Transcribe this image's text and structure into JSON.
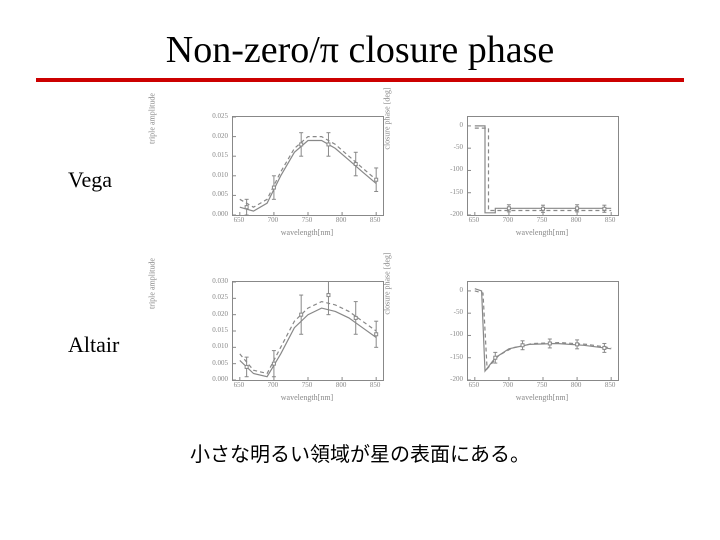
{
  "title": "Non-zero/π closure phase",
  "caption": "小さな明るい領域が星の表面にある。",
  "rule_color": "#cc0000",
  "plot_style": {
    "line_color": "#888888",
    "line_width": 1.2,
    "dash_pattern": "4 3",
    "marker_color": "#888888",
    "tick_color": "#888888",
    "box_border": "#888888",
    "background": "#ffffff",
    "label_fontsize": 8,
    "tick_fontsize": 7
  },
  "rows": [
    {
      "label": "Vega",
      "left": {
        "type": "line",
        "xlabel": "wavelength[nm]",
        "ylabel": "triple amplitude",
        "xlim": [
          640,
          860
        ],
        "ylim": [
          0,
          0.025
        ],
        "xticks": [
          650,
          700,
          750,
          800,
          850
        ],
        "xtick_labels": [
          "650",
          "700",
          "750",
          "800",
          "850"
        ],
        "yticks": [
          0,
          0.005,
          0.01,
          0.015,
          0.02,
          0.025
        ],
        "ytick_labels": [
          "0.000",
          "0.005",
          "0.010",
          "0.015",
          "0.020",
          "0.025"
        ],
        "solid": [
          [
            650,
            0.002
          ],
          [
            670,
            0.001
          ],
          [
            690,
            0.003
          ],
          [
            710,
            0.01
          ],
          [
            730,
            0.016
          ],
          [
            750,
            0.019
          ],
          [
            770,
            0.019
          ],
          [
            790,
            0.017
          ],
          [
            810,
            0.014
          ],
          [
            830,
            0.011
          ],
          [
            850,
            0.008
          ]
        ],
        "dashed": [
          [
            650,
            0.004
          ],
          [
            670,
            0.002
          ],
          [
            690,
            0.004
          ],
          [
            710,
            0.011
          ],
          [
            730,
            0.017
          ],
          [
            750,
            0.02
          ],
          [
            770,
            0.02
          ],
          [
            790,
            0.018
          ],
          [
            810,
            0.015
          ],
          [
            830,
            0.012
          ],
          [
            850,
            0.009
          ]
        ],
        "errorbars": [
          [
            660,
            0.002,
            0.002
          ],
          [
            700,
            0.007,
            0.003
          ],
          [
            740,
            0.018,
            0.003
          ],
          [
            780,
            0.018,
            0.003
          ],
          [
            820,
            0.013,
            0.003
          ],
          [
            850,
            0.009,
            0.003
          ]
        ]
      },
      "right": {
        "type": "step",
        "xlabel": "wavelength[nm]",
        "ylabel": "closure phase [deg]",
        "xlim": [
          640,
          860
        ],
        "ylim": [
          -200,
          20
        ],
        "xticks": [
          650,
          700,
          750,
          800,
          850
        ],
        "xtick_labels": [
          "650",
          "700",
          "750",
          "800",
          "850"
        ],
        "yticks": [
          -200,
          -150,
          -100,
          -50,
          0
        ],
        "ytick_labels": [
          "-200",
          "-150",
          "-100",
          "-50",
          "0"
        ],
        "solid": [
          [
            650,
            0
          ],
          [
            665,
            0
          ],
          [
            665,
            -195
          ],
          [
            680,
            -195
          ],
          [
            680,
            -185
          ],
          [
            850,
            -185
          ]
        ],
        "dashed": [
          [
            650,
            -5
          ],
          [
            670,
            -5
          ],
          [
            670,
            -190
          ],
          [
            850,
            -190
          ]
        ],
        "errorbars": [
          [
            700,
            -185,
            8
          ],
          [
            750,
            -186,
            8
          ],
          [
            800,
            -185,
            8
          ],
          [
            840,
            -186,
            8
          ]
        ]
      }
    },
    {
      "label": "Altair",
      "left": {
        "type": "line",
        "xlabel": "wavelength[nm]",
        "ylabel": "triple amplitude",
        "xlim": [
          640,
          860
        ],
        "ylim": [
          0,
          0.03
        ],
        "xticks": [
          650,
          700,
          750,
          800,
          850
        ],
        "xtick_labels": [
          "650",
          "700",
          "750",
          "800",
          "850"
        ],
        "yticks": [
          0,
          0.005,
          0.01,
          0.015,
          0.02,
          0.025,
          0.03
        ],
        "ytick_labels": [
          "0.000",
          "0.005",
          "0.010",
          "0.015",
          "0.020",
          "0.025",
          "0.030"
        ],
        "solid": [
          [
            650,
            0.006
          ],
          [
            670,
            0.002
          ],
          [
            690,
            0.001
          ],
          [
            710,
            0.008
          ],
          [
            730,
            0.016
          ],
          [
            750,
            0.02
          ],
          [
            770,
            0.022
          ],
          [
            790,
            0.021
          ],
          [
            810,
            0.019
          ],
          [
            830,
            0.016
          ],
          [
            850,
            0.013
          ]
        ],
        "dashed": [
          [
            650,
            0.008
          ],
          [
            670,
            0.003
          ],
          [
            690,
            0.002
          ],
          [
            710,
            0.01
          ],
          [
            730,
            0.018
          ],
          [
            750,
            0.022
          ],
          [
            770,
            0.024
          ],
          [
            790,
            0.023
          ],
          [
            810,
            0.021
          ],
          [
            830,
            0.018
          ],
          [
            850,
            0.015
          ]
        ],
        "errorbars": [
          [
            660,
            0.004,
            0.003
          ],
          [
            700,
            0.005,
            0.004
          ],
          [
            740,
            0.02,
            0.006
          ],
          [
            780,
            0.026,
            0.006
          ],
          [
            820,
            0.019,
            0.005
          ],
          [
            850,
            0.014,
            0.004
          ]
        ]
      },
      "right": {
        "type": "curve",
        "xlabel": "wavelength[nm]",
        "ylabel": "closure phase [deg]",
        "xlim": [
          640,
          860
        ],
        "ylim": [
          -200,
          20
        ],
        "xticks": [
          650,
          700,
          750,
          800,
          850
        ],
        "xtick_labels": [
          "650",
          "700",
          "750",
          "800",
          "850"
        ],
        "yticks": [
          -200,
          -150,
          -100,
          -50,
          0
        ],
        "ytick_labels": [
          "-200",
          "-150",
          "-100",
          "-50",
          "0"
        ],
        "solid": [
          [
            650,
            5
          ],
          [
            660,
            0
          ],
          [
            665,
            -180
          ],
          [
            680,
            -150
          ],
          [
            700,
            -130
          ],
          [
            730,
            -120
          ],
          [
            770,
            -118
          ],
          [
            810,
            -122
          ],
          [
            850,
            -130
          ]
        ],
        "dashed": [
          [
            650,
            0
          ],
          [
            662,
            -5
          ],
          [
            668,
            -175
          ],
          [
            685,
            -145
          ],
          [
            705,
            -128
          ],
          [
            735,
            -118
          ],
          [
            775,
            -116
          ],
          [
            815,
            -120
          ],
          [
            850,
            -128
          ]
        ],
        "errorbars": [
          [
            680,
            -150,
            12
          ],
          [
            720,
            -122,
            10
          ],
          [
            760,
            -118,
            10
          ],
          [
            800,
            -120,
            10
          ],
          [
            840,
            -128,
            10
          ]
        ]
      }
    }
  ]
}
